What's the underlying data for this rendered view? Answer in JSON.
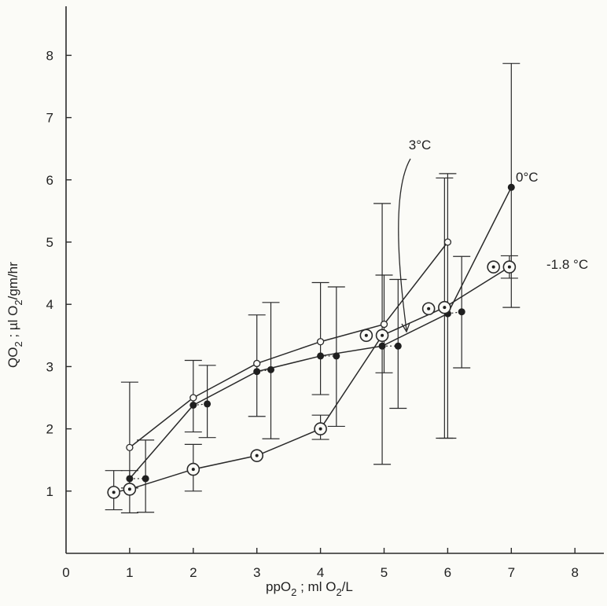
{
  "chart_data": {
    "type": "line",
    "xlabel": "ppO",
    "xlabel_sub": "2",
    "xlabel_rest": " ; ml O",
    "xlabel_sub2": "2",
    "xlabel_tail": "/L",
    "ylabel": "QO",
    "ylabel_sub": "2",
    "ylabel_mid": " ; µl O",
    "ylabel_sub2": "2",
    "ylabel_tail": "/gm/hr",
    "xlim": [
      0,
      8.5
    ],
    "ylim": [
      0,
      8.5
    ],
    "x_ticks": [
      "0",
      "1",
      "2",
      "3",
      "4",
      "5",
      "6",
      "7",
      "8"
    ],
    "y_ticks": [
      "1",
      "2",
      "3",
      "4",
      "5",
      "6",
      "7",
      "8"
    ],
    "grid": false,
    "series": [
      {
        "name": "3°C",
        "marker": "open-circle",
        "x": [
          1.0,
          2.0,
          3.0,
          4.0,
          5.0,
          6.0
        ],
        "y": [
          1.7,
          2.5,
          3.05,
          3.4,
          3.68,
          5.0
        ],
        "err_low": [
          1.05,
          1.95,
          2.2,
          2.55,
          2.9,
          1.85
        ],
        "err_high": [
          2.75,
          3.1,
          3.83,
          4.35,
          4.47,
          6.1
        ]
      },
      {
        "name": "0°C",
        "marker": "filled-dot",
        "x": [
          1.0,
          2.0,
          3.0,
          4.0,
          4.97,
          6.0,
          7.0
        ],
        "y": [
          1.2,
          2.38,
          2.92,
          3.17,
          3.33,
          3.85,
          5.88
        ],
        "err_low": [
          0.66,
          1.86,
          1.84,
          2.04,
          2.33,
          2.98,
          3.95
        ],
        "err_high": [
          1.82,
          3.02,
          4.03,
          4.28,
          4.4,
          4.77,
          7.87
        ],
        "shifted_x": [
          1.25,
          2.22,
          3.22,
          4.25,
          5.22,
          6.22
        ],
        "shifted_y": [
          1.2,
          2.4,
          2.95,
          3.17,
          3.33,
          3.88
        ]
      },
      {
        "name": "-1.8°C",
        "marker": "circled-dot",
        "x": [
          0.75,
          1.0,
          2.0,
          3.0,
          4.0,
          4.72,
          4.97,
          5.7,
          5.95,
          6.72,
          6.97
        ],
        "y": [
          0.98,
          1.03,
          1.35,
          1.57,
          2.0,
          3.5,
          3.5,
          3.93,
          3.95,
          4.6,
          4.6
        ],
        "err_low": [
          0.7,
          0.65,
          1.0,
          1.22,
          1.83,
          1.43,
          1.43,
          1.85,
          1.85,
          4.42,
          4.42
        ],
        "err_high": [
          1.33,
          1.33,
          1.75,
          1.9,
          2.22,
          5.62,
          5.62,
          6.03,
          6.03,
          4.78,
          4.78
        ],
        "line_path": [
          0,
          1,
          2,
          3,
          4,
          6,
          8,
          10
        ]
      }
    ],
    "annotations": [
      {
        "text": "3°C",
        "target": "3°C series line near ppO2 5.4"
      },
      {
        "text": "0°C",
        "target": "0°C series endpoint"
      },
      {
        "text": "-1.8 °C",
        "target": "-1.8°C series endpoint"
      }
    ]
  }
}
